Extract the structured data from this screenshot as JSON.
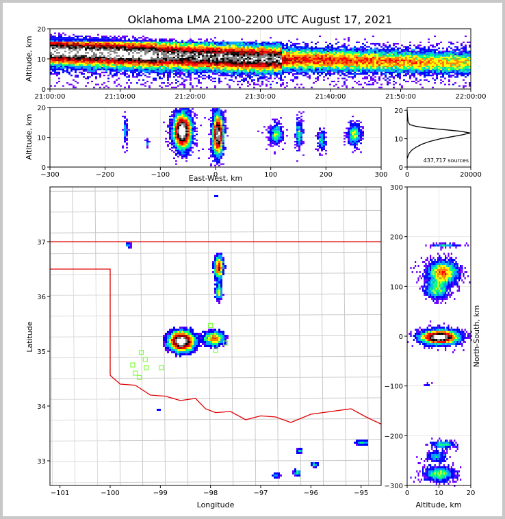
{
  "chart_data": [
    {
      "panel": "time-height",
      "type": "heatmap",
      "title": "Oklahoma LMA 2100-2200 UTC August 17, 2021",
      "ylabel": "Altitude, km",
      "xlabel": "",
      "xticks": [
        "21:00:00",
        "21:10:00",
        "21:20:00",
        "21:30:00",
        "21:40:00",
        "21:50:00",
        "22:00:00"
      ],
      "yticks": [
        "0",
        "10",
        "20"
      ],
      "ylim": [
        0,
        20
      ],
      "xlim": [
        "21:00:00",
        "22:00:00"
      ]
    },
    {
      "panel": "east-west-altitude",
      "type": "heatmap",
      "xlabel": "East-West, km",
      "ylabel": "Altitude, km",
      "xticks": [
        "−300",
        "−200",
        "−100",
        "0",
        "100",
        "200",
        "300"
      ],
      "yticks": [
        "0",
        "10",
        "20"
      ],
      "xlim": [
        -300,
        300
      ],
      "ylim": [
        0,
        20
      ]
    },
    {
      "panel": "altitude-histogram",
      "type": "line",
      "annotation": "437,717 sources",
      "xticks": [
        "0",
        "20000"
      ],
      "yticks": [
        "0",
        "10",
        "20"
      ],
      "xlim": [
        0,
        20000
      ],
      "ylim": [
        0,
        21
      ],
      "series": [
        {
          "x": [
            0,
            300,
            700,
            1500,
            2800,
            4500,
            7000,
            10500,
            14500,
            17500,
            19800,
            17000,
            11500,
            6000,
            2500,
            800,
            300,
            100,
            0
          ],
          "y": [
            3,
            4,
            5,
            6,
            7,
            8,
            9,
            10,
            10.8,
            11.4,
            12,
            12.6,
            13.2,
            13.8,
            14.4,
            15,
            16,
            18,
            20
          ]
        }
      ]
    },
    {
      "panel": "plan-view",
      "type": "heatmap",
      "xlabel": "Longitude",
      "ylabel": "Latitude",
      "xticks": [
        "−101",
        "−100",
        "−99",
        "−98",
        "−97",
        "−96",
        "−95"
      ],
      "yticks": [
        "33",
        "34",
        "35",
        "36",
        "37"
      ],
      "xlim": [
        -101.2,
        -94.6
      ],
      "ylim": [
        32.55,
        38
      ],
      "stations": [
        [
          -98.0,
          35.47
        ],
        [
          -97.95,
          35.28
        ],
        [
          -98.05,
          35.25
        ],
        [
          -97.9,
          35.02
        ],
        [
          -97.7,
          35.15
        ],
        [
          -99.38,
          34.98
        ],
        [
          -99.3,
          34.85
        ],
        [
          -99.55,
          34.75
        ],
        [
          -99.28,
          34.7
        ],
        [
          -98.98,
          34.7
        ],
        [
          -99.5,
          34.6
        ],
        [
          -99.42,
          34.52
        ]
      ],
      "colors": {
        "border": "#e00000",
        "counties": "#c8c8c8",
        "station": "#80ff40"
      }
    },
    {
      "panel": "north-south-altitude",
      "type": "heatmap",
      "xlabel": "Altitude, km",
      "ylabel": "North-South, km",
      "xticks": [
        "0",
        "10",
        "20"
      ],
      "yticks": [
        "−300",
        "−200",
        "−100",
        "0",
        "100",
        "200",
        "300"
      ],
      "xlim": [
        0,
        20
      ],
      "ylim": [
        -300,
        300
      ]
    }
  ],
  "colormap": [
    "#6a00ff",
    "#0000ff",
    "#00a0ff",
    "#00ff80",
    "#ffff00",
    "#ff8000",
    "#ff0000",
    "#a00000",
    "#000000",
    "#808080",
    "#ffffff"
  ]
}
